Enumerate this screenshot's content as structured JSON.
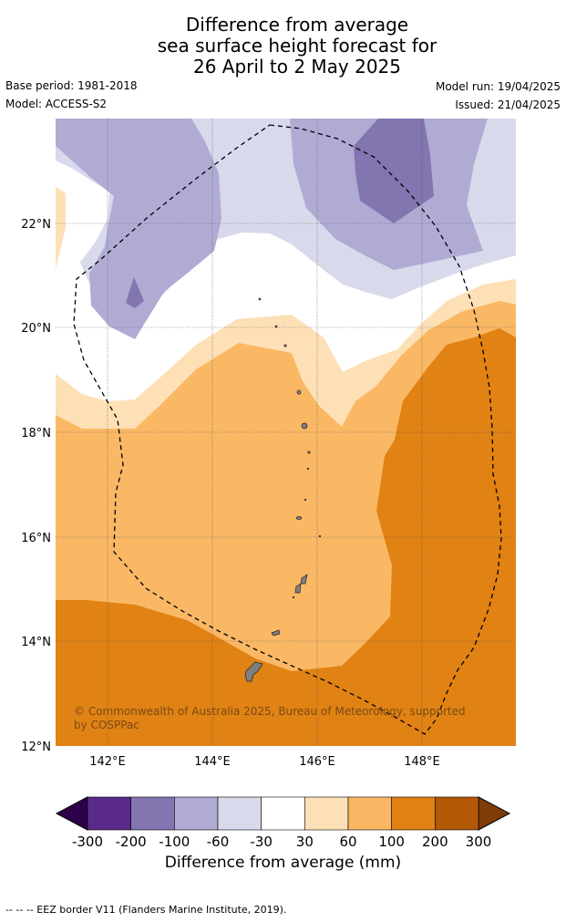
{
  "title": {
    "line1": "Difference from average",
    "line2": "sea surface height forecast for",
    "line3": "26 April to 2 May 2025"
  },
  "meta": {
    "base_period": "Base period: 1981-2018",
    "model": "Model: ACCESS-S2",
    "model_run": "Model run: 19/04/2025",
    "issued": "Issued: 21/04/2025"
  },
  "map": {
    "lon_range": [
      141.0,
      149.8
    ],
    "lat_range": [
      12.0,
      24.0
    ],
    "lon_ticks": [
      "142°E",
      "144°E",
      "146°E",
      "148°E"
    ],
    "lat_ticks": [
      "12°N",
      "14°N",
      "16°N",
      "18°N",
      "20°N",
      "22°N"
    ],
    "copyright_line1": "© Commonwealth of Australia 2025, Bureau of Meteorology, supported",
    "copyright_line2": "by COSPPac",
    "land_color": "#7f7f7f"
  },
  "colorbar": {
    "labels": [
      "-300",
      "-200",
      "-100",
      "-60",
      "-30",
      "30",
      "60",
      "100",
      "200",
      "300"
    ],
    "colors": [
      "#5a2a8a",
      "#8275b0",
      "#b0abd3",
      "#d9d9ec",
      "#ffffff",
      "#fee0b6",
      "#fab865",
      "#e08214",
      "#b35807"
    ],
    "under_color": "#2d004b",
    "over_color": "#7f3b08",
    "title": "Difference from average (mm)"
  },
  "footnote": "--  --  -- EEZ border V11 (Flanders Marine Institute, 2019)."
}
